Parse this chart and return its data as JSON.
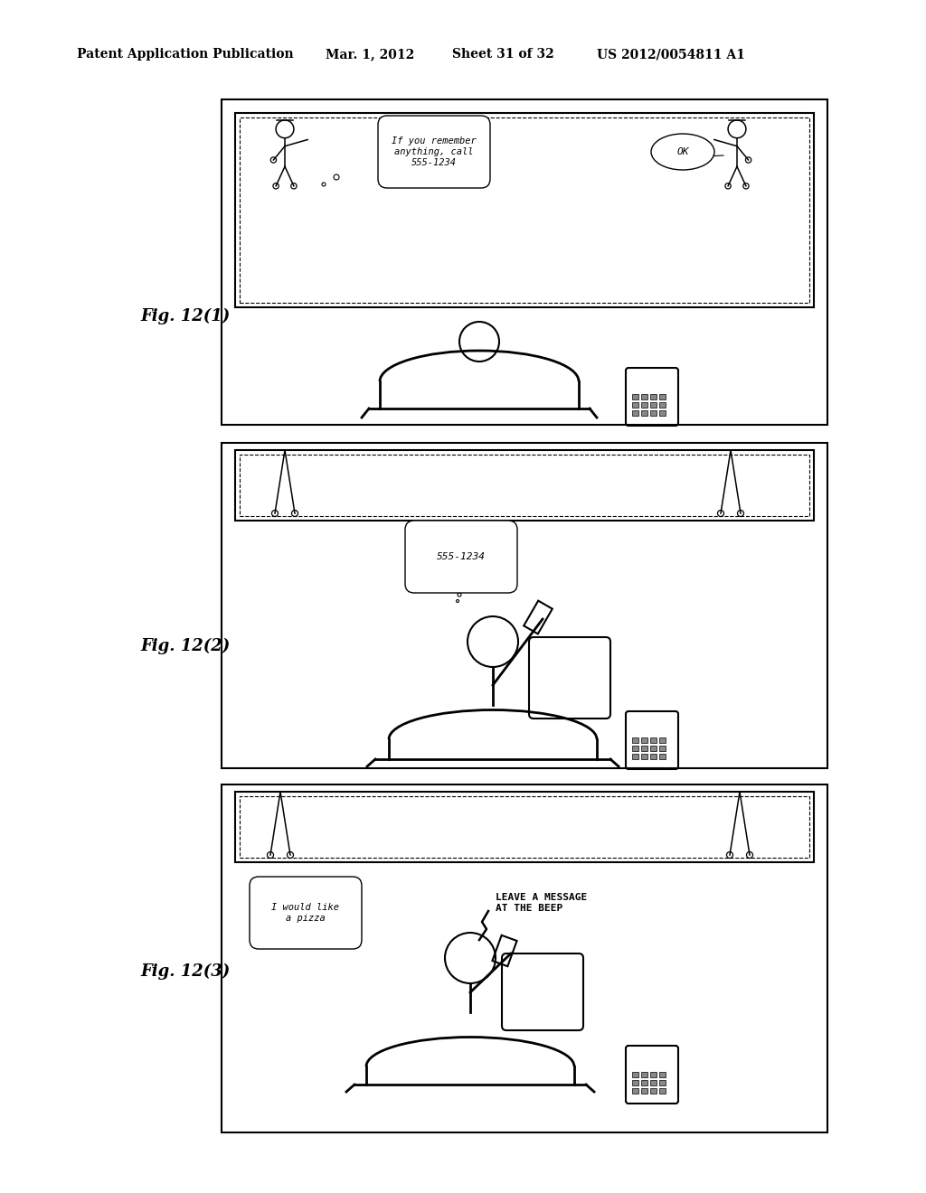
{
  "bg_color": "#ffffff",
  "header_text": "Patent Application Publication",
  "header_date": "Mar. 1, 2012",
  "header_sheet": "Sheet 31 of 32",
  "header_patent": "US 2012/0054811 A1",
  "fig_labels": [
    "Fig. 12(1)",
    "Fig. 12(2)",
    "Fig. 12(3)"
  ],
  "speech_bubble1": "If you remember\nanything, call\n555-1234",
  "speech_bubble2": "OK",
  "thought_bubble": "555-1234",
  "speech_bubble3": "I would like\na pizza",
  "voicemail_text": "LEAVE A MESSAGE\nAT THE BEEP"
}
